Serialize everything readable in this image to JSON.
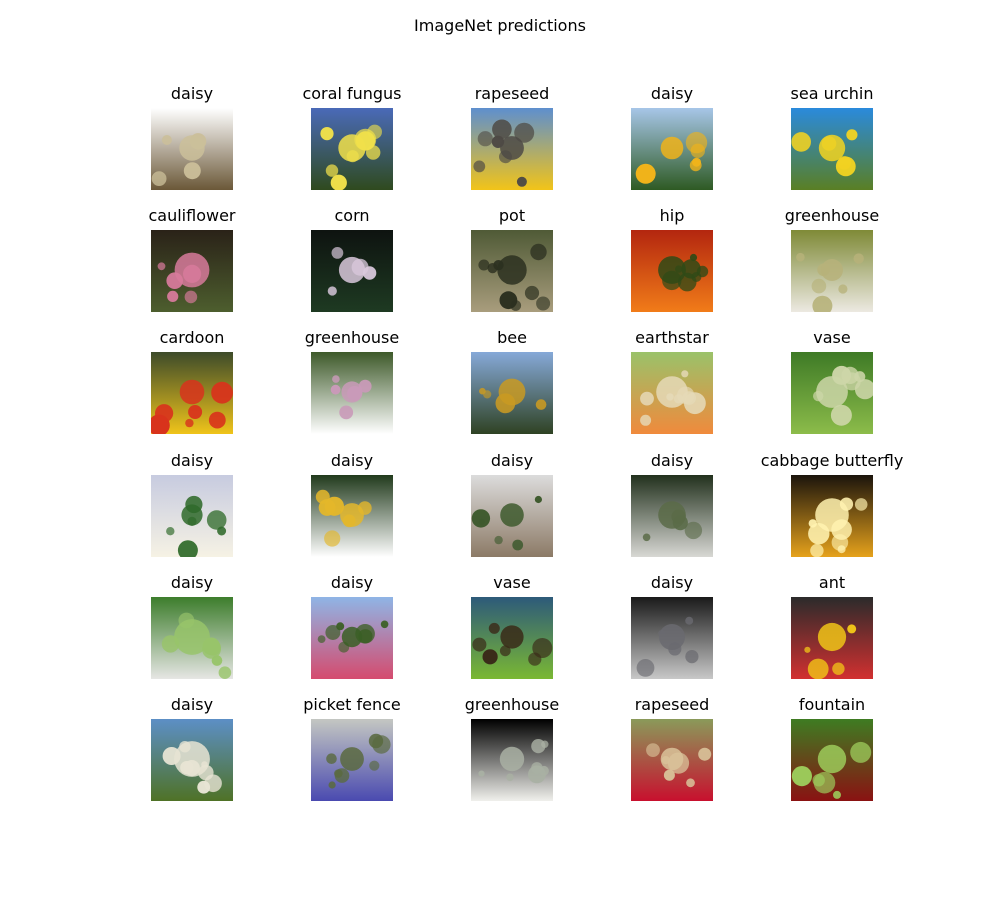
{
  "title": "ImageNet predictions",
  "grid": {
    "rows": 6,
    "cols": 5,
    "items": [
      {
        "label": "daisy",
        "thumbnail": "rose-photo-print",
        "colors": [
          "#ffffff",
          "#6b5838",
          "#cbbf9a"
        ]
      },
      {
        "label": "coral fungus",
        "thumbnail": "yellow-flowers",
        "colors": [
          "#4a6ab8",
          "#2f4a1e",
          "#f1e14a"
        ]
      },
      {
        "label": "rapeseed",
        "thumbnail": "windmill-tulips",
        "colors": [
          "#5e8fce",
          "#f2c418",
          "#4e4a45"
        ]
      },
      {
        "label": "daisy",
        "thumbnail": "sunflower-field",
        "colors": [
          "#a7c6e8",
          "#2e5a23",
          "#f0b31a"
        ]
      },
      {
        "label": "sea urchin",
        "thumbnail": "dandelion-meadow",
        "colors": [
          "#2a8adc",
          "#5a7f24",
          "#f3d321"
        ]
      },
      {
        "label": "cauliflower",
        "thumbnail": "flower-pot-vignette",
        "colors": [
          "#2a2218",
          "#4d5e2e",
          "#d77a9b"
        ]
      },
      {
        "label": "corn",
        "thumbnail": "dandelion-dark",
        "colors": [
          "#0e1310",
          "#1e3a22",
          "#d9c8dc"
        ]
      },
      {
        "label": "pot",
        "thumbnail": "people-garden",
        "colors": [
          "#4f5a36",
          "#a99d7d",
          "#2c3020"
        ]
      },
      {
        "label": "hip",
        "thumbnail": "orange-flowers",
        "colors": [
          "#b3260f",
          "#f17c19",
          "#2f4a16"
        ]
      },
      {
        "label": "greenhouse",
        "thumbnail": "dandelion-seedhead",
        "colors": [
          "#7f8a37",
          "#ece9e1",
          "#b7b27a"
        ]
      },
      {
        "label": "cardoon",
        "thumbnail": "tulip-rows",
        "colors": [
          "#3d4b2a",
          "#f0c41a",
          "#d8331c"
        ]
      },
      {
        "label": "greenhouse",
        "thumbnail": "bench-tulips",
        "colors": [
          "#3e5a2a",
          "#ffffff",
          "#c99ab8"
        ]
      },
      {
        "label": "bee",
        "thumbnail": "sunflowers-sky",
        "colors": [
          "#86a9d8",
          "#2f4223",
          "#c99a22"
        ]
      },
      {
        "label": "earthstar",
        "thumbnail": "orange-tulips",
        "colors": [
          "#9ac26a",
          "#f08a3c",
          "#e5d9b7"
        ]
      },
      {
        "label": "vase",
        "thumbnail": "dandelion-green",
        "colors": [
          "#3e7a26",
          "#8cbc4a",
          "#cdd6a8"
        ]
      },
      {
        "label": "daisy",
        "thumbnail": "white-rose-cake",
        "colors": [
          "#c7cbe0",
          "#f6f2e4",
          "#2f6a2a"
        ]
      },
      {
        "label": "daisy",
        "thumbnail": "white-daisy",
        "colors": [
          "#213a1c",
          "#ffffff",
          "#e4b72a"
        ]
      },
      {
        "label": "daisy",
        "thumbnail": "memorial-cross",
        "colors": [
          "#dcdcdc",
          "#8c7a66",
          "#3e5a2e"
        ]
      },
      {
        "label": "daisy",
        "thumbnail": "dandelion-dark-green",
        "colors": [
          "#22311d",
          "#d8d8d4",
          "#5a6b48"
        ]
      },
      {
        "label": "cabbage butterfly",
        "thumbnail": "dandelion-sunset",
        "colors": [
          "#1b140c",
          "#e6a21c",
          "#fff2b0"
        ]
      },
      {
        "label": "daisy",
        "thumbnail": "dandelion-clock",
        "colors": [
          "#3d7d2c",
          "#e6e6e4",
          "#98c46a"
        ]
      },
      {
        "label": "daisy",
        "thumbnail": "tulips-sky",
        "colors": [
          "#8fb5e6",
          "#d54b6e",
          "#3a5f24"
        ]
      },
      {
        "label": "vase",
        "thumbnail": "sunflower-closeup",
        "colors": [
          "#2d5a7a",
          "#7ab833",
          "#3a2a18"
        ]
      },
      {
        "label": "daisy",
        "thumbnail": "marching-band",
        "colors": [
          "#1a1a1a",
          "#c8c8c8",
          "#6a6a70"
        ]
      },
      {
        "label": "ant",
        "thumbnail": "man-sunflowers",
        "colors": [
          "#2b2b2b",
          "#d23030",
          "#f0c418"
        ]
      },
      {
        "label": "daisy",
        "thumbnail": "dandelions-field",
        "colors": [
          "#5c8fc6",
          "#4f7226",
          "#e8e4d4"
        ]
      },
      {
        "label": "picket fence",
        "thumbnail": "glasshouse-lavender",
        "colors": [
          "#c4c7c2",
          "#4a4ab0",
          "#5a6a40"
        ]
      },
      {
        "label": "greenhouse",
        "thumbnail": "white-roses-black",
        "colors": [
          "#000000",
          "#f0f0ec",
          "#a9b0a3"
        ]
      },
      {
        "label": "rapeseed",
        "thumbnail": "red-rose",
        "colors": [
          "#8a9a5a",
          "#c8102e",
          "#d9c39a"
        ]
      },
      {
        "label": "fountain",
        "thumbnail": "red-sunflower",
        "colors": [
          "#3e7c22",
          "#8a1212",
          "#9ccb5b"
        ]
      }
    ]
  }
}
